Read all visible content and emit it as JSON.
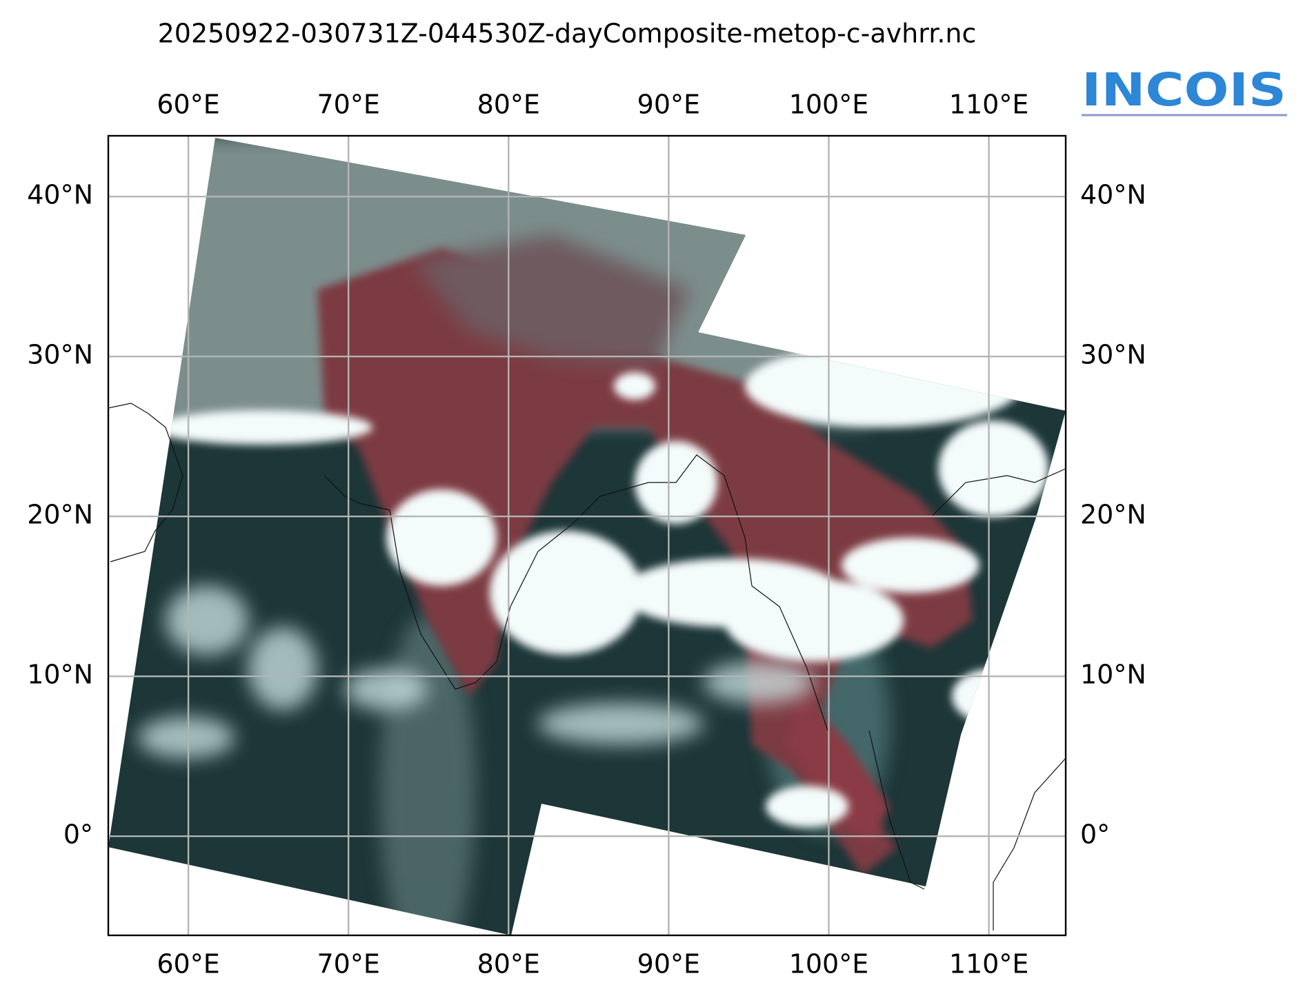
{
  "map": {
    "title": "20250922-030731Z-044530Z-dayComposite-metop-c-avhrr.nc",
    "logo": "INCOIS",
    "xlim": [
      55,
      114.8
    ],
    "ylim": [
      -6.2,
      43.8
    ],
    "xticks": [
      {
        "value": 60,
        "label": "60°E"
      },
      {
        "value": 70,
        "label": "70°E"
      },
      {
        "value": 80,
        "label": "80°E"
      },
      {
        "value": 90,
        "label": "90°E"
      },
      {
        "value": 100,
        "label": "100°E"
      },
      {
        "value": 110,
        "label": "110°E"
      }
    ],
    "yticks": [
      {
        "value": 0,
        "label": "0°"
      },
      {
        "value": 10,
        "label": "10°N"
      },
      {
        "value": 20,
        "label": "20°N"
      },
      {
        "value": 30,
        "label": "30°N"
      },
      {
        "value": 40,
        "label": "40°N"
      }
    ]
  }
}
